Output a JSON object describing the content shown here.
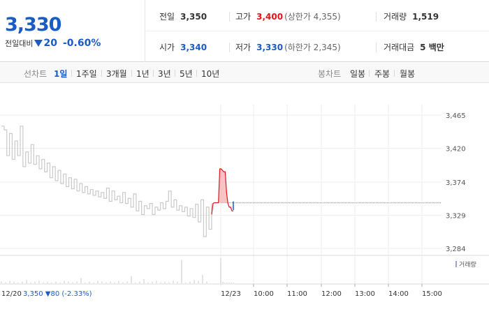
{
  "summary": {
    "price": "3,330",
    "change_label": "전일대비",
    "change_value": "20",
    "change_pct": "-0.60%",
    "prev_close": {
      "label": "전일",
      "value": "3,350"
    },
    "high": {
      "label": "고가",
      "value": "3,400",
      "sub": "(상한가 4,355)"
    },
    "volume": {
      "label": "거래량",
      "value": "1,519"
    },
    "open": {
      "label": "시가",
      "value": "3,340"
    },
    "low": {
      "label": "저가",
      "value": "3,330",
      "sub": "(하한가 2,345)"
    },
    "trade_value": {
      "label": "거래대금",
      "value": "5 백만"
    }
  },
  "tabs": {
    "line_label": "선차트",
    "line_tabs": [
      "1일",
      "1주일",
      "3개월",
      "1년",
      "3년",
      "5년",
      "10년"
    ],
    "candle_label": "봉차트",
    "candle_tabs": [
      "일봉",
      "주봉",
      "월봉"
    ]
  },
  "colors": {
    "up": "#e2131b",
    "down": "#1a5bc4",
    "prev_line": "#bdbdbd"
  },
  "chart_data": {
    "type": "line",
    "y_ticks": [
      "3,465",
      "3,420",
      "3,374",
      "3,329",
      "3,284"
    ],
    "y_tick_values": [
      3465,
      3420,
      3374,
      3329,
      3284
    ],
    "ylim": [
      3284,
      3465
    ],
    "x_labels": [
      "12/20",
      "12/23",
      "10:00",
      "11:00",
      "12:00",
      "13:00",
      "14:00",
      "15:00"
    ],
    "legend": "거래량",
    "prev_day_info": {
      "date": "12/20",
      "close": "3,350",
      "change": "▼80",
      "pct": "(-2.33%)"
    },
    "prev_day_series": [
      3450,
      3445,
      3410,
      3440,
      3405,
      3430,
      3410,
      3450,
      3395,
      3415,
      3400,
      3425,
      3398,
      3410,
      3392,
      3405,
      3388,
      3400,
      3380,
      3395,
      3376,
      3390,
      3372,
      3385,
      3368,
      3380,
      3365,
      3378,
      3362,
      3372,
      3360,
      3368,
      3358,
      3364,
      3356,
      3362,
      3354,
      3360,
      3352,
      3366,
      3348,
      3362,
      3350,
      3355,
      3346,
      3360,
      3345,
      3352,
      3340,
      3358,
      3335,
      3348,
      3330,
      3342,
      3338,
      3345,
      3330,
      3340,
      3336,
      3346,
      3338,
      3348,
      3362,
      3340,
      3350,
      3336,
      3342,
      3334,
      3340,
      3328,
      3338,
      3326,
      3344,
      3320,
      3350,
      3300,
      3340,
      3310,
      3345
    ],
    "today_series": [
      3330,
      3345,
      3346,
      3346,
      3346,
      3346,
      3392,
      3392,
      3390,
      3388,
      3388,
      3360,
      3345,
      3340,
      3340,
      3335,
      3335
    ],
    "prev_day_volume": [
      2,
      1,
      3,
      2,
      1,
      2,
      4,
      1,
      2,
      3,
      1,
      2,
      1,
      2,
      1,
      3,
      2,
      1,
      2,
      6,
      1,
      2,
      1,
      3,
      2,
      1,
      2,
      1,
      3,
      1,
      2,
      9,
      1,
      2,
      5,
      1,
      2,
      3,
      1,
      2,
      1,
      3,
      2,
      28,
      1,
      2,
      4,
      3,
      10,
      2
    ],
    "today_volume": [
      30,
      2,
      1,
      1,
      1,
      1,
      1
    ]
  }
}
